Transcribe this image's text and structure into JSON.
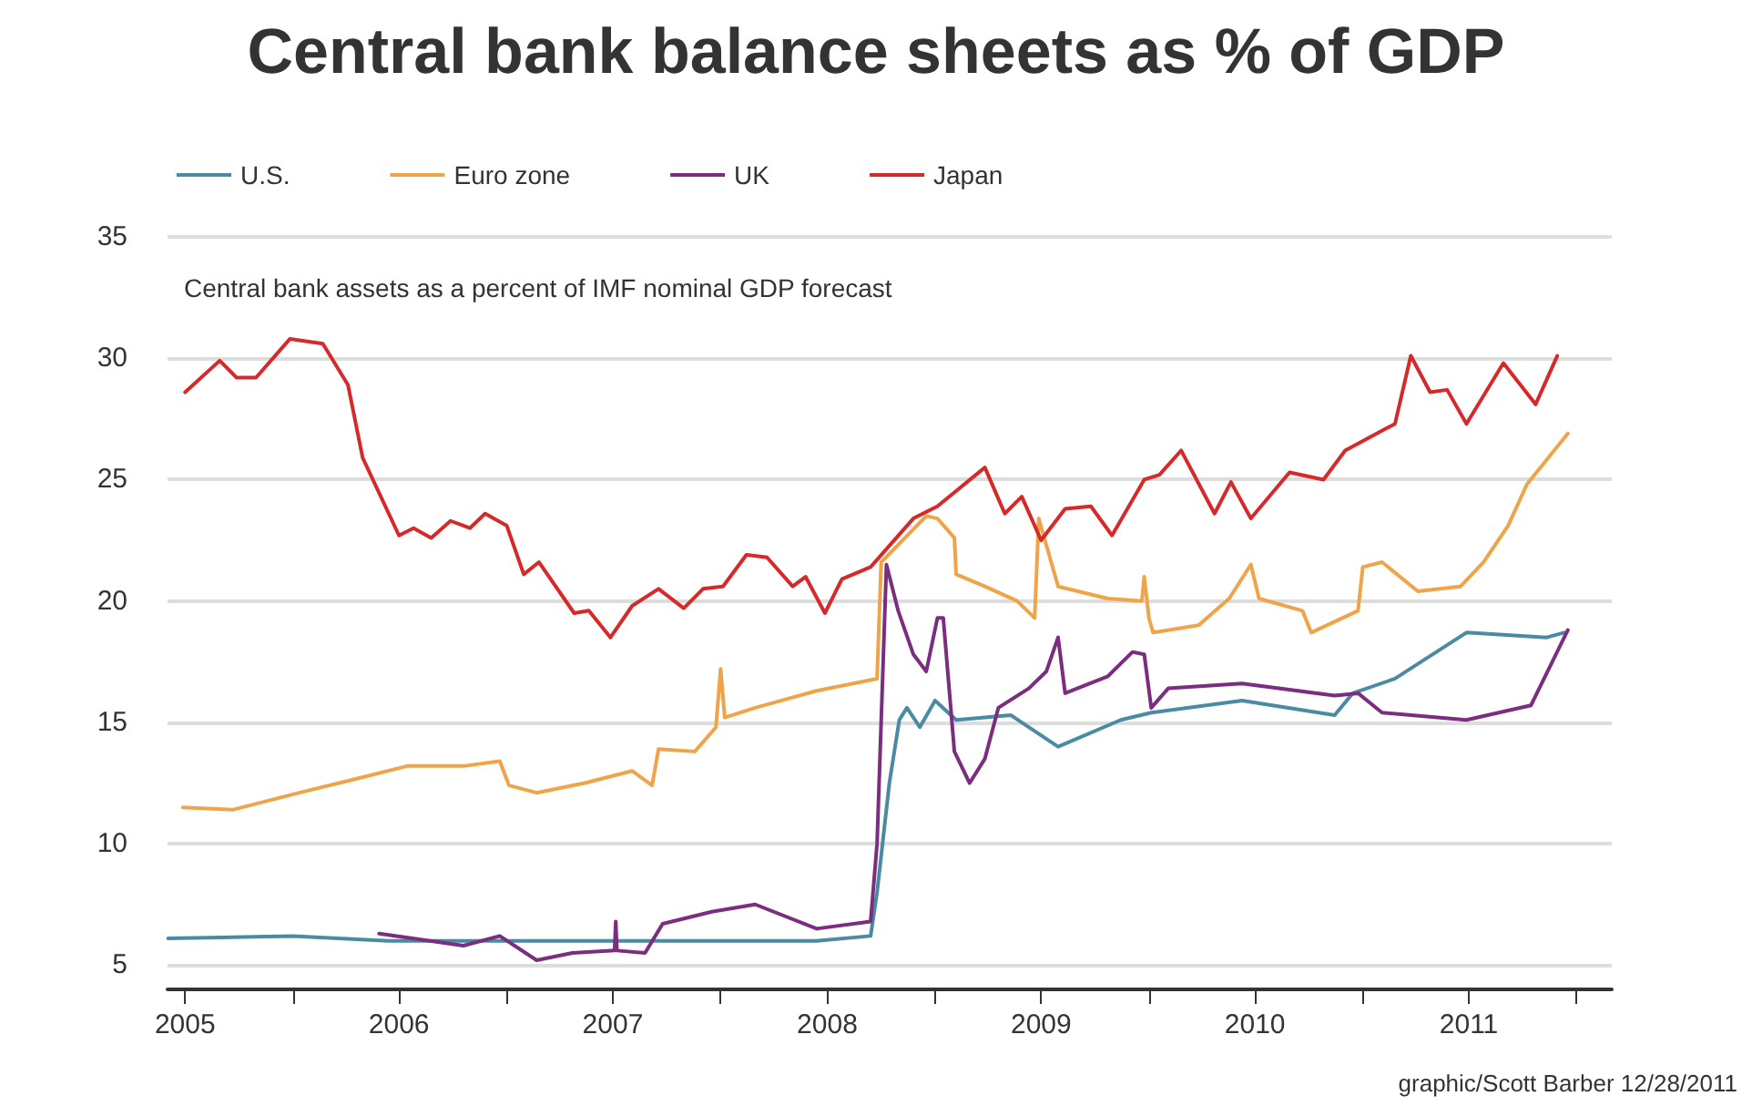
{
  "chart_data": {
    "type": "line",
    "title": "Central bank balance sheets as % of GDP",
    "subtitle": "Central bank assets as a percent of IMF nominal GDP forecast",
    "annotations": [
      "graphic/Scott Barber 12/28/2011"
    ],
    "xlim": [
      "2005-06-01",
      "2012-03-01"
    ],
    "ylim": [
      4,
      35
    ],
    "yticks": [
      5,
      10,
      15,
      20,
      25,
      30,
      35
    ],
    "xticks": [
      {
        "value": "2005-07-01",
        "label": "2005"
      },
      {
        "value": "2006-01-01",
        "label": null
      },
      {
        "value": "2006-07-01",
        "label": "2006"
      },
      {
        "value": "2007-01-01",
        "label": null
      },
      {
        "value": "2007-07-01",
        "label": "2007"
      },
      {
        "value": "2008-01-01",
        "label": null
      },
      {
        "value": "2008-07-01",
        "label": "2008"
      },
      {
        "value": "2009-01-01",
        "label": null
      },
      {
        "value": "2009-07-01",
        "label": "2009"
      },
      {
        "value": "2010-01-01",
        "label": null
      },
      {
        "value": "2010-07-01",
        "label": "2010"
      },
      {
        "value": "2011-01-01",
        "label": null
      },
      {
        "value": "2011-07-01",
        "label": "2011"
      },
      {
        "value": "2012-01-01",
        "label": null
      }
    ],
    "grid": "y",
    "legend": "top left",
    "marker": "none",
    "line_style": "solid",
    "series": [
      {
        "name": "U.S.",
        "color": "#4a8ba3",
        "x": [
          "2005-06-02",
          "2006-01-01",
          "2006-06-13",
          "2007-04-23",
          "2008-06-13",
          "2008-09-13",
          "2008-09-24",
          "2008-10-15",
          "2008-11-01",
          "2008-11-14",
          "2008-12-06",
          "2009-01-01",
          "2009-02-06",
          "2009-05-10",
          "2009-07-30",
          "2009-11-14",
          "2010-01-05",
          "2010-06-09",
          "2010-11-14",
          "2010-12-15",
          "2011-02-25",
          "2011-06-27",
          "2011-11-11",
          "2011-12-11"
        ],
        "values": [
          6.1,
          6.2,
          6.0,
          6.0,
          6.0,
          6.2,
          8.0,
          12.5,
          15.1,
          15.6,
          14.8,
          15.9,
          15.1,
          15.3,
          14.0,
          15.1,
          15.4,
          15.9,
          15.3,
          16.2,
          16.8,
          18.7,
          18.5,
          18.7
        ]
      },
      {
        "name": "Euro zone",
        "color": "#f0a44a",
        "x": [
          "2005-06-27",
          "2005-09-20",
          "2006-01-12",
          "2006-04-23",
          "2006-07-15",
          "2006-10-19",
          "2006-12-20",
          "2007-01-05",
          "2007-02-21",
          "2007-05-14",
          "2007-08-03",
          "2007-09-06",
          "2007-09-17",
          "2007-11-18",
          "2007-12-24",
          "2008-01-01",
          "2008-01-08",
          "2008-02-29",
          "2008-06-13",
          "2008-09-24",
          "2008-10-01",
          "2008-12-17",
          "2009-01-05",
          "2009-02-03",
          "2009-02-06",
          "2009-03-27",
          "2009-05-21",
          "2009-06-20",
          "2009-06-27",
          "2009-07-30",
          "2009-10-23",
          "2009-12-20",
          "2009-12-24",
          "2010-01-01",
          "2010-01-08",
          "2010-03-27",
          "2010-05-18",
          "2010-06-24",
          "2010-07-08",
          "2010-09-20",
          "2010-10-05",
          "2010-12-24",
          "2011-01-01",
          "2011-02-03",
          "2011-04-05",
          "2011-06-17",
          "2011-07-26",
          "2011-09-06",
          "2011-10-08",
          "2011-12-17"
        ],
        "values": [
          11.5,
          11.4,
          12.1,
          12.7,
          13.2,
          13.2,
          13.4,
          12.4,
          12.1,
          12.5,
          13.0,
          12.4,
          13.9,
          13.8,
          14.8,
          17.2,
          15.2,
          15.6,
          16.3,
          16.8,
          21.6,
          23.5,
          23.4,
          22.6,
          21.1,
          20.6,
          20.0,
          19.3,
          23.4,
          20.6,
          20.1,
          20.0,
          21.0,
          19.3,
          18.7,
          19.0,
          20.1,
          21.5,
          20.1,
          19.6,
          18.7,
          19.6,
          21.4,
          21.6,
          20.4,
          20.6,
          21.6,
          23.1,
          24.8,
          26.9
        ]
      },
      {
        "name": "UK",
        "color": "#7b2d7f",
        "x": [
          "2006-05-28",
          "2006-10-19",
          "2006-12-20",
          "2007-02-21",
          "2007-04-23",
          "2007-07-04",
          "2007-07-06",
          "2007-07-08",
          "2007-08-25",
          "2007-09-24",
          "2007-12-17",
          "2008-02-29",
          "2008-06-13",
          "2008-09-13",
          "2008-09-24",
          "2008-10-10",
          "2008-10-30",
          "2008-11-25",
          "2008-12-17",
          "2009-01-05",
          "2009-01-15",
          "2009-02-03",
          "2009-03-01",
          "2009-03-27",
          "2009-04-19",
          "2009-06-10",
          "2009-07-10",
          "2009-07-30",
          "2009-08-11",
          "2009-10-23",
          "2009-12-04",
          "2009-12-24",
          "2010-01-05",
          "2010-02-03",
          "2010-06-09",
          "2010-11-14",
          "2010-12-24",
          "2011-02-03",
          "2011-06-27",
          "2011-10-15",
          "2011-12-17"
        ],
        "values": [
          6.3,
          5.8,
          6.2,
          5.2,
          5.5,
          5.6,
          6.8,
          5.6,
          5.5,
          6.7,
          7.2,
          7.5,
          6.5,
          6.8,
          10.0,
          21.5,
          19.6,
          17.8,
          17.1,
          19.3,
          19.3,
          13.8,
          12.5,
          13.5,
          15.6,
          16.4,
          17.1,
          18.5,
          16.2,
          16.9,
          17.9,
          17.8,
          15.6,
          16.4,
          16.6,
          16.1,
          16.2,
          15.4,
          15.1,
          15.7,
          18.8
        ]
      },
      {
        "name": "Japan",
        "color": "#d62a2a",
        "x": [
          "2005-07-01",
          "2005-08-29",
          "2005-09-27",
          "2005-10-30",
          "2005-12-27",
          "2006-02-21",
          "2006-04-05",
          "2006-04-30",
          "2006-07-01",
          "2006-07-26",
          "2006-08-25",
          "2006-09-27",
          "2006-10-30",
          "2006-11-25",
          "2007-01-01",
          "2007-01-30",
          "2007-02-25",
          "2007-04-26",
          "2007-05-21",
          "2007-06-27",
          "2007-08-03",
          "2007-09-17",
          "2007-10-30",
          "2007-12-02",
          "2008-01-05",
          "2008-02-14",
          "2008-03-20",
          "2008-05-03",
          "2008-05-25",
          "2008-06-27",
          "2008-07-26",
          "2008-09-13",
          "2008-11-25",
          "2009-01-05",
          "2009-03-27",
          "2009-04-30",
          "2009-05-29",
          "2009-07-01",
          "2009-08-11",
          "2009-09-24",
          "2009-10-30",
          "2009-12-24",
          "2010-01-19",
          "2010-02-25",
          "2010-04-23",
          "2010-05-21",
          "2010-06-24",
          "2010-08-29",
          "2010-10-26",
          "2010-12-02",
          "2011-02-25",
          "2011-03-24",
          "2011-04-26",
          "2011-05-25",
          "2011-06-27",
          "2011-08-29",
          "2011-10-23",
          "2011-11-29"
        ],
        "values": [
          28.6,
          29.9,
          29.2,
          29.2,
          30.8,
          30.6,
          28.9,
          25.9,
          22.7,
          23.0,
          22.6,
          23.3,
          23.0,
          23.6,
          23.1,
          21.1,
          21.6,
          19.5,
          19.6,
          18.5,
          19.8,
          20.5,
          19.7,
          20.5,
          20.6,
          21.9,
          21.8,
          20.6,
          21.0,
          19.5,
          20.9,
          21.4,
          23.4,
          23.9,
          25.5,
          23.6,
          24.3,
          22.5,
          23.8,
          23.9,
          22.7,
          25.0,
          25.2,
          26.2,
          23.6,
          24.9,
          23.4,
          25.3,
          25.0,
          26.2,
          27.3,
          30.1,
          28.6,
          28.7,
          27.3,
          29.8,
          28.1,
          30.1
        ]
      }
    ]
  }
}
